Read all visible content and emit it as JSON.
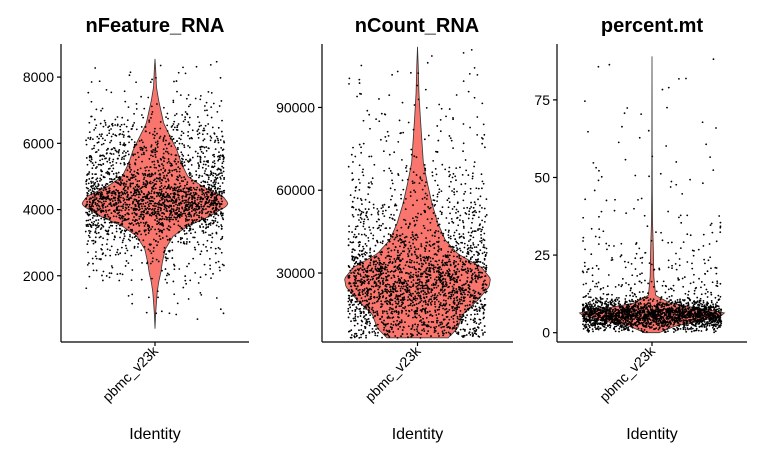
{
  "chart_data": [
    {
      "type": "violin",
      "title": "nFeature_RNA",
      "xlabel": "Identity",
      "ylabel": "",
      "categories": [
        "pbmc_v23k"
      ],
      "yticks": [
        2000,
        4000,
        6000,
        8000
      ],
      "ytick_labels": [
        "2000",
        "4000",
        "6000",
        "8000"
      ],
      "ylim": [
        0,
        9000
      ],
      "fill_color": "#F8766D",
      "summary": {
        "min": 400,
        "max": 8550,
        "median": 4150,
        "q1": 3600,
        "q3": 4700
      },
      "density_profile": [
        [
          400,
          0.0
        ],
        [
          900,
          0.01
        ],
        [
          1500,
          0.03
        ],
        [
          1800,
          0.05
        ],
        [
          2100,
          0.08
        ],
        [
          2400,
          0.1
        ],
        [
          2800,
          0.14
        ],
        [
          3200,
          0.25
        ],
        [
          3500,
          0.45
        ],
        [
          3800,
          0.75
        ],
        [
          4100,
          0.98
        ],
        [
          4200,
          1.0
        ],
        [
          4400,
          0.93
        ],
        [
          4700,
          0.65
        ],
        [
          5000,
          0.45
        ],
        [
          5400,
          0.36
        ],
        [
          5800,
          0.3
        ],
        [
          6200,
          0.21
        ],
        [
          6600,
          0.12
        ],
        [
          7000,
          0.08
        ],
        [
          7300,
          0.05
        ],
        [
          7700,
          0.02
        ],
        [
          8200,
          0.01
        ],
        [
          8550,
          0.0
        ]
      ]
    },
    {
      "type": "violin",
      "title": "nCount_RNA",
      "xlabel": "Identity",
      "ylabel": "",
      "categories": [
        "pbmc_v23k"
      ],
      "yticks": [
        30000,
        60000,
        90000
      ],
      "ytick_labels": [
        "30000",
        "60000",
        "90000"
      ],
      "ylim": [
        5000,
        113000
      ],
      "fill_color": "#F8766D",
      "summary": {
        "min": 6500,
        "max": 112000,
        "median": 28500,
        "q1": 21000,
        "q3": 36000
      },
      "density_profile": [
        [
          6500,
          0.42
        ],
        [
          10000,
          0.55
        ],
        [
          15000,
          0.62
        ],
        [
          20000,
          0.82
        ],
        [
          25000,
          0.98
        ],
        [
          28000,
          1.0
        ],
        [
          32000,
          0.88
        ],
        [
          37000,
          0.55
        ],
        [
          42000,
          0.38
        ],
        [
          48000,
          0.28
        ],
        [
          55000,
          0.2
        ],
        [
          62000,
          0.14
        ],
        [
          70000,
          0.08
        ],
        [
          78000,
          0.06
        ],
        [
          86000,
          0.04
        ],
        [
          95000,
          0.02
        ],
        [
          105000,
          0.01
        ],
        [
          112000,
          0.0
        ]
      ]
    },
    {
      "type": "violin",
      "title": "percent.mt",
      "xlabel": "Identity",
      "ylabel": "",
      "categories": [
        "pbmc_v23k"
      ],
      "yticks": [
        0,
        25,
        50,
        75
      ],
      "ytick_labels": [
        "0",
        "25",
        "50",
        "75"
      ],
      "ylim": [
        -3,
        93
      ],
      "fill_color": "#F8766D",
      "summary": {
        "min": 0,
        "max": 89,
        "median": 6,
        "q1": 5,
        "q3": 8
      },
      "density_profile": [
        [
          0,
          0.1
        ],
        [
          2,
          0.3
        ],
        [
          4,
          0.7
        ],
        [
          5.5,
          0.95
        ],
        [
          6.5,
          1.0
        ],
        [
          8,
          0.6
        ],
        [
          9.5,
          0.25
        ],
        [
          12,
          0.05
        ],
        [
          18,
          0.025
        ],
        [
          25,
          0.02
        ],
        [
          30,
          0.015
        ],
        [
          35,
          0.008
        ],
        [
          45,
          0.004
        ],
        [
          60,
          0.002
        ],
        [
          75,
          0.001
        ],
        [
          89,
          0.0
        ]
      ]
    }
  ]
}
